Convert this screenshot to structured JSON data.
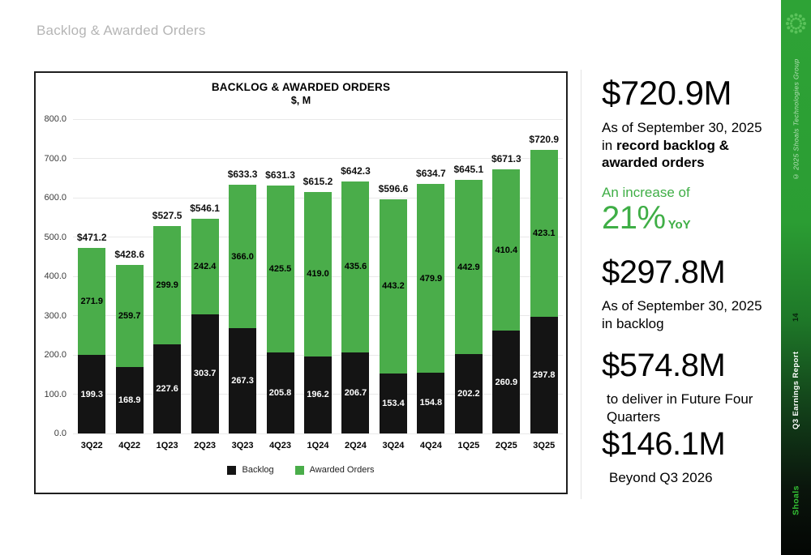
{
  "page": {
    "title": "Backlog & Awarded Orders"
  },
  "colors": {
    "bar_black": "#141414",
    "bar_green": "#4aad4a",
    "text_green": "#3fae46",
    "grid": "#e9e9e9"
  },
  "chart_data": {
    "type": "bar",
    "stacked": true,
    "title": "BACKLOG & AWARDED ORDERS",
    "subtitle": "$, M",
    "categories": [
      "3Q22",
      "4Q22",
      "1Q23",
      "2Q23",
      "3Q23",
      "4Q23",
      "1Q24",
      "2Q24",
      "3Q24",
      "4Q24",
      "1Q25",
      "2Q25",
      "3Q25"
    ],
    "series": [
      {
        "name": "Backlog",
        "color": "#141414",
        "values": [
          199.3,
          168.9,
          227.6,
          303.7,
          267.3,
          205.8,
          196.2,
          206.7,
          153.4,
          154.8,
          202.2,
          260.9,
          297.8
        ]
      },
      {
        "name": "Awarded Orders",
        "color": "#4aad4a",
        "values": [
          271.9,
          259.7,
          299.9,
          242.4,
          366.0,
          425.5,
          419.0,
          435.6,
          443.2,
          479.9,
          442.9,
          410.4,
          423.1
        ]
      }
    ],
    "totals": [
      471.2,
      428.6,
      527.5,
      546.1,
      633.3,
      631.3,
      615.2,
      642.3,
      596.6,
      634.7,
      645.1,
      671.3,
      720.9
    ],
    "total_label_prefix": "$",
    "ylim": [
      0,
      800
    ],
    "ytick_step": 100,
    "grid": true,
    "legend_position": "bottom"
  },
  "stats": {
    "total": {
      "value": "$720.9M",
      "line1": "As of September 30, 2025",
      "line2_normal": "in ",
      "line2_bold": "record backlog & awarded orders"
    },
    "increase": {
      "prefix": "An increase of",
      "value": "21%",
      "suffix": "YoY"
    },
    "backlog": {
      "value": "$297.8M",
      "line1": "As of September 30, 2025",
      "line2": "in backlog"
    },
    "future": {
      "value": "$574.8M",
      "line1": "to deliver in Future Four Quarters"
    },
    "beyond": {
      "value": "$146.1M",
      "line1": "Beyond Q3 2026"
    }
  },
  "sidebar": {
    "copyright": "© 2025 Shoals Technologies Group",
    "page_number": "14",
    "report_title": "Q3 Earnings Report",
    "brand": "Shoals"
  }
}
